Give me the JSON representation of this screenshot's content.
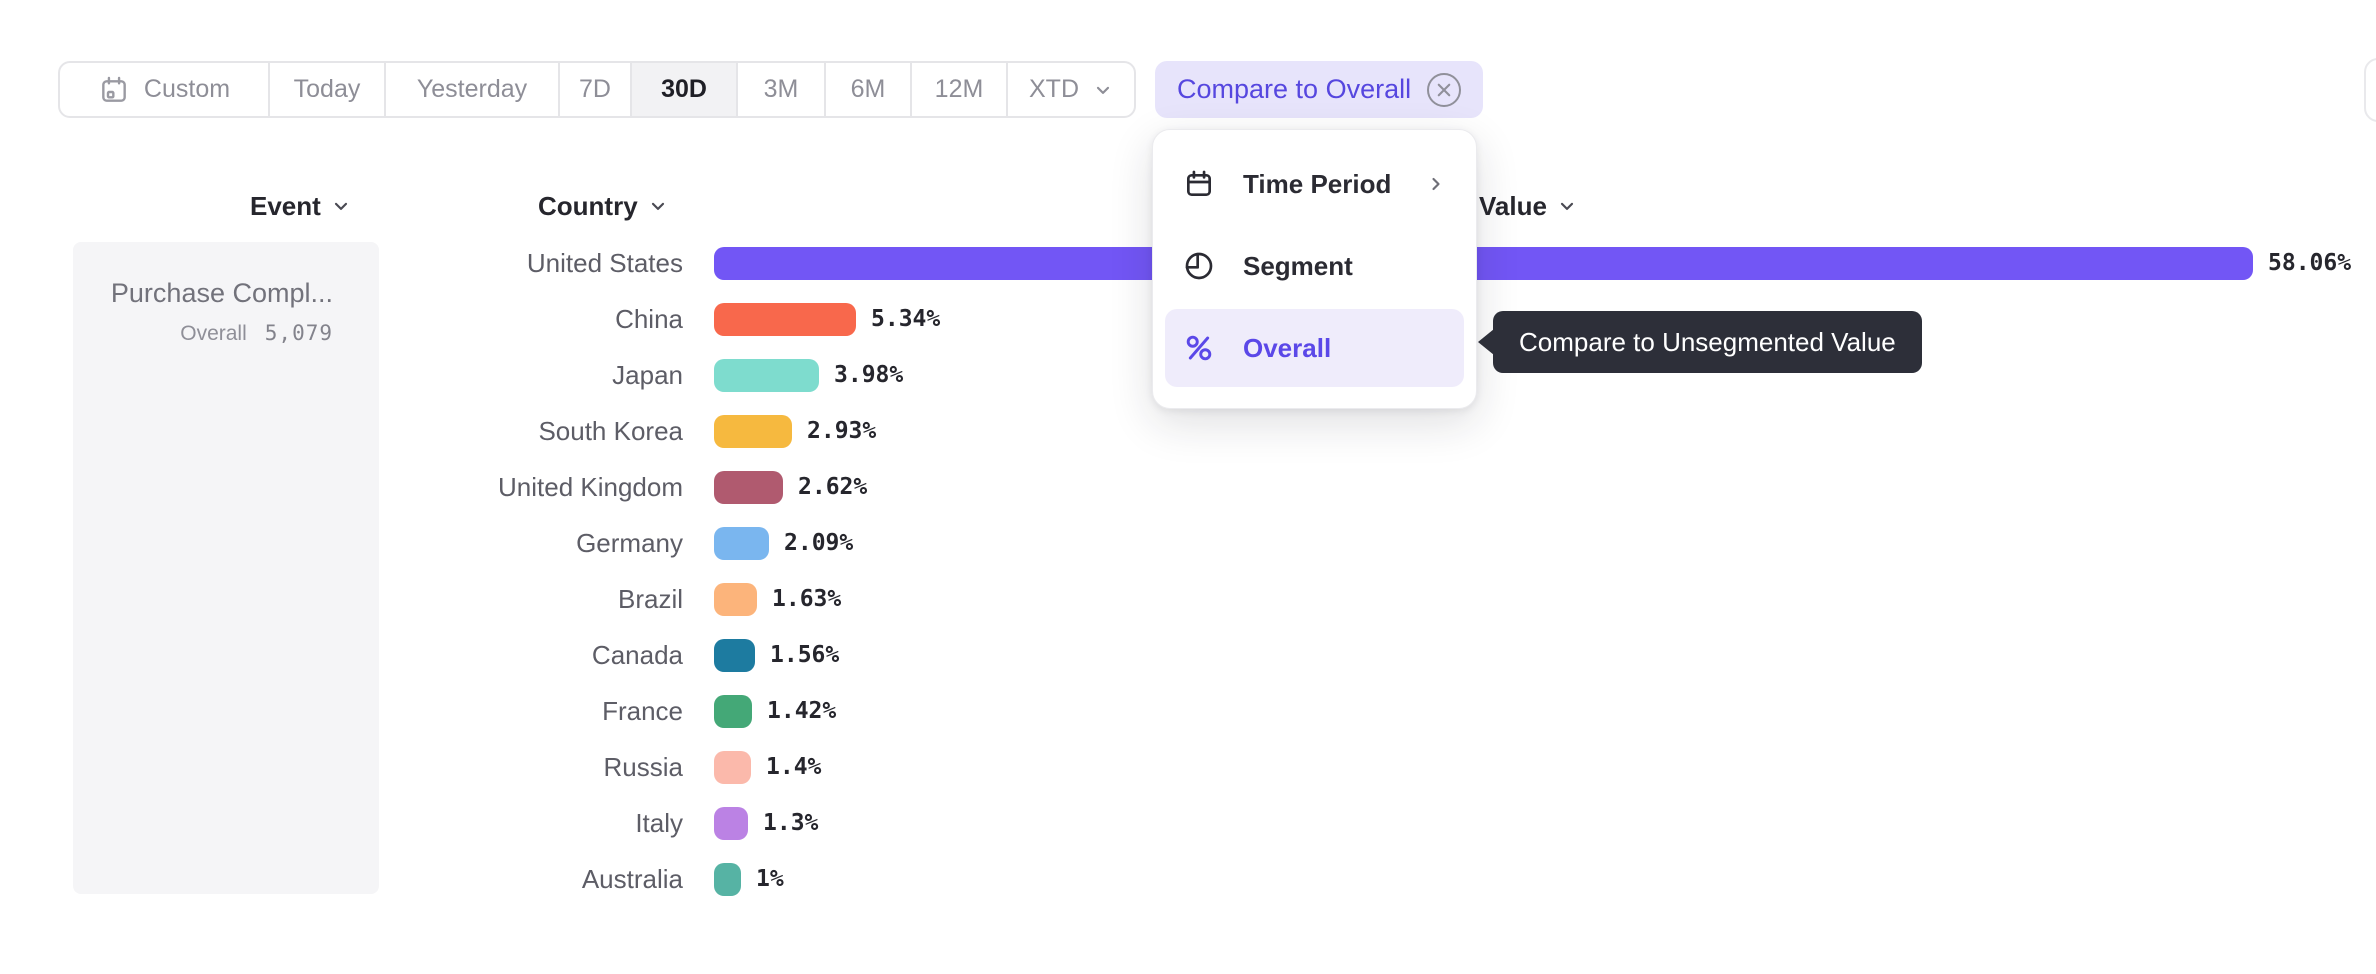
{
  "toolbar": {
    "buttons": [
      {
        "label": "Custom",
        "icon": "calendar-icon"
      },
      {
        "label": "Today"
      },
      {
        "label": "Yesterday"
      },
      {
        "label": "7D"
      },
      {
        "label": "30D",
        "selected": true
      },
      {
        "label": "3M"
      },
      {
        "label": "6M"
      },
      {
        "label": "12M"
      },
      {
        "label": "XTD",
        "icon": "chevron-down-icon"
      }
    ],
    "compare_chip": {
      "label": "Compare to Overall",
      "icon": "circled-x-icon"
    }
  },
  "columns": {
    "event": "Event",
    "country": "Country",
    "value": "Value"
  },
  "event_panel": {
    "name": "Purchase Compl...",
    "overall_label": "Overall",
    "overall_value": "5,079"
  },
  "menu": {
    "items": [
      {
        "label": "Time Period",
        "icon": "calendar-icon",
        "has_submenu": true
      },
      {
        "label": "Segment",
        "icon": "segment-icon"
      },
      {
        "label": "Overall",
        "icon": "percent-icon",
        "highlighted": true
      }
    ]
  },
  "tooltip": {
    "text": "Compare to Unsegmented Value"
  },
  "chart_data": {
    "type": "bar",
    "orientation": "horizontal",
    "unit": "%",
    "title": "",
    "xlabel": "",
    "ylabel": "Country",
    "xlim": [
      0,
      60
    ],
    "grid": false,
    "legend": false,
    "categories": [
      "United States",
      "China",
      "Japan",
      "South Korea",
      "United Kingdom",
      "Germany",
      "Brazil",
      "Canada",
      "France",
      "Russia",
      "Italy",
      "Australia"
    ],
    "values": [
      58.06,
      5.34,
      3.98,
      2.93,
      2.62,
      2.09,
      1.63,
      1.56,
      1.42,
      1.4,
      1.3,
      1.0
    ],
    "display_values": [
      "58.06%",
      "5.34%",
      "3.98%",
      "2.93%",
      "2.62%",
      "2.09%",
      "1.63%",
      "1.56%",
      "1.42%",
      "1.4%",
      "1.3%",
      "1%"
    ],
    "colors": [
      "#7256F5",
      "#F8684C",
      "#7EDCCE",
      "#F6B93F",
      "#B05A6F",
      "#7AB6EF",
      "#FCB47B",
      "#1D7BA0",
      "#44A877",
      "#FBB9AB",
      "#BB82E4",
      "#56B3A4"
    ]
  },
  "colors": {
    "accent_purple": "#5b48e8",
    "chip_bg": "#e7e4fb",
    "selected_button_bg": "#f2f2f4",
    "panel_bg": "#f5f5f7",
    "tooltip_bg": "#2d2f39",
    "border": "#e5e5e8",
    "text_muted": "#8e8e97",
    "text_dark": "#26262d"
  }
}
